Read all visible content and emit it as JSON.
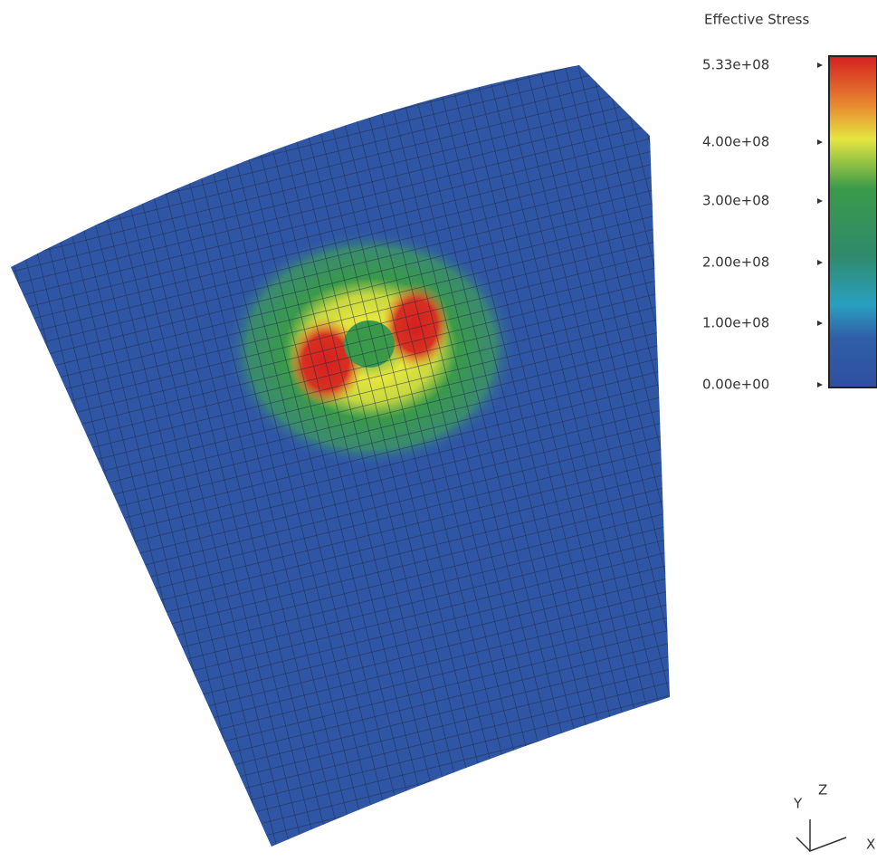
{
  "legend": {
    "title": "Effective Stress",
    "ticks": [
      "5.33e+08",
      "4.00e+08",
      "3.00e+08",
      "2.00e+08",
      "1.00e+08",
      "0.00e+00"
    ]
  },
  "triad": {
    "z": "Z",
    "y": "Y",
    "x": "X"
  }
}
